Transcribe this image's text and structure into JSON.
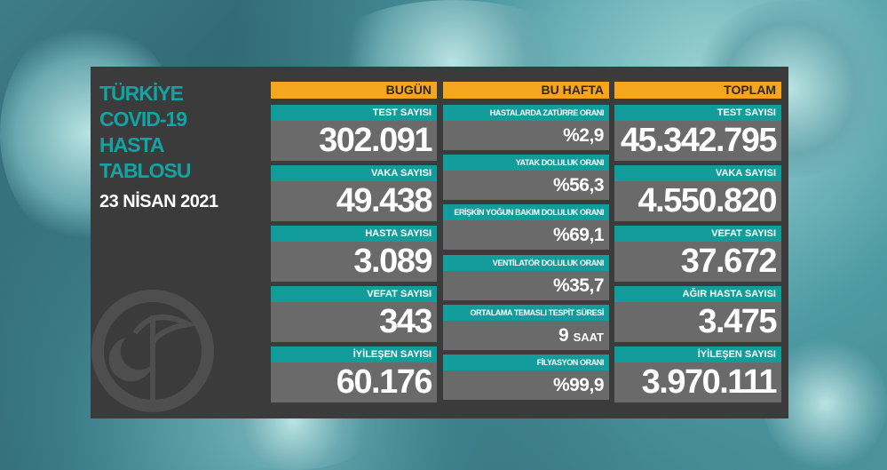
{
  "title": [
    "TÜRKİYE",
    "COVID-19",
    "HASTA",
    "TABLOSU"
  ],
  "date": "23 NİSAN 2021",
  "colors": {
    "panel": "#3b3b3b",
    "header": "#f6a51f",
    "label": "#139c9c",
    "value_bg": "#6a6a6a",
    "title": "#13a3a3"
  },
  "today": {
    "header": "BUGÜN",
    "items": [
      {
        "label": "TEST SAYISI",
        "value": "302.091"
      },
      {
        "label": "VAKA SAYISI",
        "value": "49.438"
      },
      {
        "label": "HASTA SAYISI",
        "value": "3.089"
      },
      {
        "label": "VEFAT SAYISI",
        "value": "343"
      },
      {
        "label": "İYİLEŞEN SAYISI",
        "value": "60.176"
      }
    ]
  },
  "week": {
    "header": "BU HAFTA",
    "items": [
      {
        "label": "HASTALARDA ZATÜRRE ORANI",
        "value": "%2,9"
      },
      {
        "label": "YATAK DOLULUK ORANI",
        "value": "%56,3"
      },
      {
        "label": "ERİŞKİN YOĞUN BAKIM DOLULUK ORANI",
        "value": "%69,1"
      },
      {
        "label": "VENTİLATÖR DOLULUK ORANI",
        "value": "%35,7"
      },
      {
        "label": "ORTALAMA TEMASLI TESPİT SÜRESİ",
        "value": "9",
        "unit": "SAAT"
      },
      {
        "label": "FİLYASYON ORANI",
        "value": "%99,9"
      }
    ]
  },
  "total": {
    "header": "TOPLAM",
    "items": [
      {
        "label": "TEST SAYISI",
        "value": "45.342.795"
      },
      {
        "label": "VAKA SAYISI",
        "value": "4.550.820"
      },
      {
        "label": "VEFAT SAYISI",
        "value": "37.672"
      },
      {
        "label": "AĞIR HASTA SAYISI",
        "value": "3.475"
      },
      {
        "label": "İYİLEŞEN SAYISI",
        "value": "3.970.111"
      }
    ]
  }
}
